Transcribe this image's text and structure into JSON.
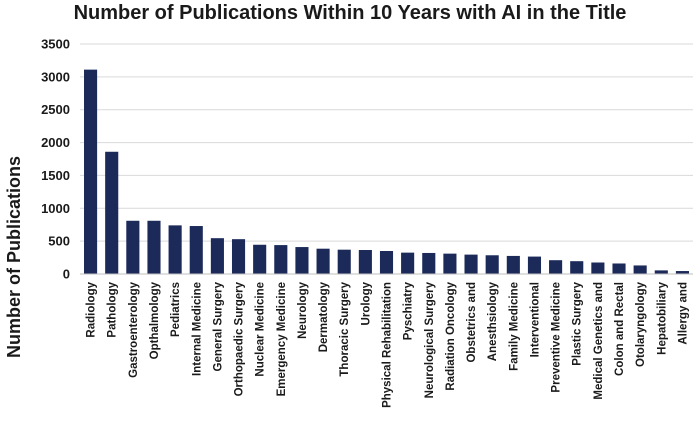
{
  "chart_data": {
    "type": "bar",
    "title": "Number of Publications Within 10 Years with AI in the Title",
    "xlabel": "",
    "ylabel": "Number of Publications",
    "ylim": [
      0,
      3500
    ],
    "yticks": [
      0,
      500,
      1000,
      1500,
      2000,
      2500,
      3000,
      3500
    ],
    "grid": true,
    "bar_color": "#1b2a59",
    "categories": [
      "Radiology",
      "Pathology",
      "Gastroenterology",
      "Opthalmology",
      "Pediatrics",
      "Internal Medicine",
      "General Surgery",
      "Orthopaedic Surgery",
      "Nuclear Medicine",
      "Emergency Medicine",
      "Neurology",
      "Dermatology",
      "Thoracic Surgery",
      "Urology",
      "Physical Rehabilitation",
      "Pyschiatry",
      "Neurological Surgery",
      "Radiation Oncology",
      "Obstetrics and",
      "Anesthsiology",
      "Family Medicine",
      "Interventional",
      "Preventive Medicine",
      "Plastic Surgery",
      "Medical Genetics and",
      "Colon and Rectal",
      "Otolaryngology",
      "Hepatobiliary",
      "Allergy and"
    ],
    "values": [
      3110,
      1860,
      810,
      810,
      740,
      730,
      545,
      530,
      445,
      440,
      410,
      385,
      370,
      365,
      350,
      325,
      320,
      310,
      295,
      285,
      275,
      265,
      210,
      195,
      175,
      160,
      130,
      55,
      45
    ]
  }
}
